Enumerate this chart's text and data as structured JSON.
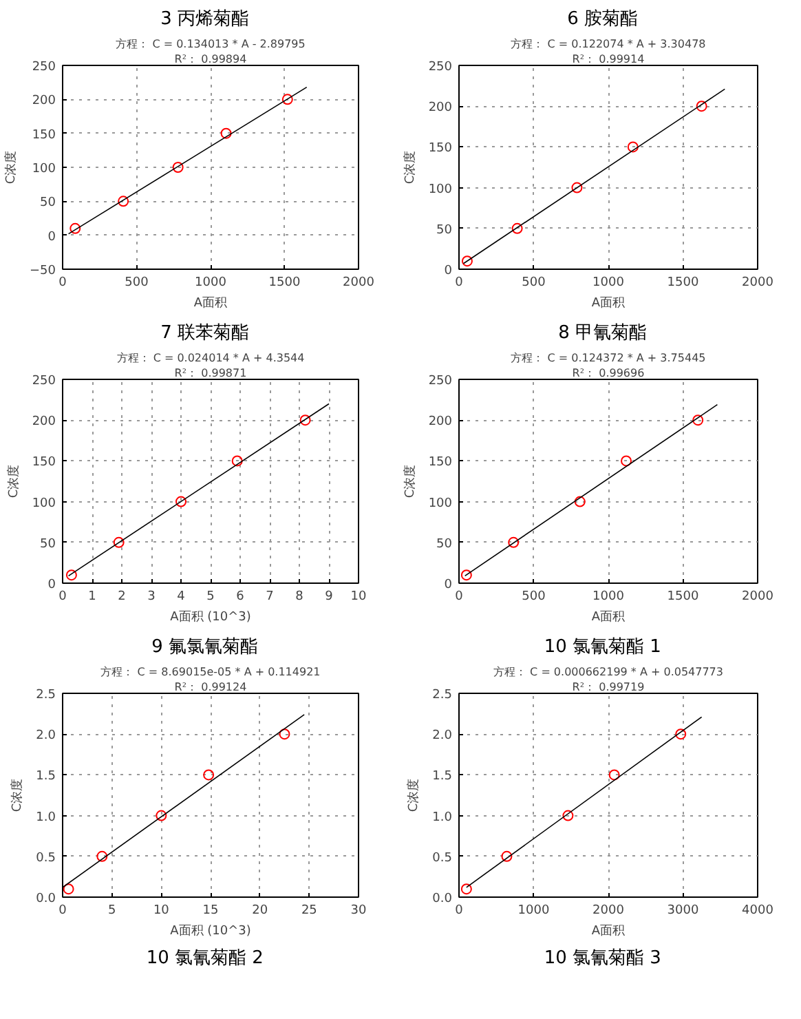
{
  "chart_data": [
    {
      "type": "scatter",
      "title": "3   丙烯菊酯",
      "xlabel": "A面积",
      "ylabel": "C浓度",
      "annotations": [
        "方程： C = 0.134013 * A - 2.89795",
        "R²： 0.99894"
      ],
      "xlim": [
        0,
        2000
      ],
      "ylim": [
        -50,
        250
      ],
      "xticks": [
        0,
        500,
        1000,
        1500,
        2000
      ],
      "yticks": [
        -50,
        0,
        50,
        100,
        150,
        200,
        250
      ],
      "grid": true,
      "series": [
        {
          "type": "scatter",
          "marker": "circle",
          "color": "#ff0000",
          "x": [
            85,
            410,
            780,
            1105,
            1520
          ],
          "values": [
            10,
            50,
            100,
            150,
            200
          ]
        },
        {
          "type": "line",
          "marker": "none",
          "color": "#000000",
          "x": [
            40,
            1650
          ],
          "values": [
            2,
            218
          ]
        }
      ]
    },
    {
      "type": "scatter",
      "title": "6   胺菊酯",
      "xlabel": "A面积",
      "ylabel": "C浓度",
      "annotations": [
        "方程： C = 0.122074 * A + 3.30478",
        "R²： 0.99914"
      ],
      "xlim": [
        0,
        2000
      ],
      "ylim": [
        0,
        250
      ],
      "xticks": [
        0,
        500,
        1000,
        1500,
        2000
      ],
      "yticks": [
        0,
        50,
        100,
        150,
        200,
        250
      ],
      "grid": true,
      "series": [
        {
          "type": "scatter",
          "marker": "circle",
          "color": "#ff0000",
          "x": [
            55,
            390,
            790,
            1165,
            1625
          ],
          "values": [
            10,
            50,
            100,
            150,
            200
          ]
        },
        {
          "type": "line",
          "marker": "none",
          "color": "#000000",
          "x": [
            30,
            1780
          ],
          "values": [
            7,
            221
          ]
        }
      ]
    },
    {
      "type": "scatter",
      "title": "7   联苯菊酯",
      "xlabel": "A面积 (10^3)",
      "ylabel": "C浓度",
      "annotations": [
        "方程： C = 0.024014 * A + 4.3544",
        "R²： 0.99871"
      ],
      "xlim": [
        0,
        10
      ],
      "ylim": [
        0,
        250
      ],
      "xticks": [
        0,
        1,
        2,
        3,
        4,
        5,
        6,
        7,
        8,
        9,
        10
      ],
      "yticks": [
        0,
        50,
        100,
        150,
        200,
        250
      ],
      "grid": true,
      "series": [
        {
          "type": "scatter",
          "marker": "circle",
          "color": "#ff0000",
          "x": [
            0.3,
            1.9,
            4.0,
            5.9,
            8.2
          ],
          "values": [
            10,
            50,
            100,
            150,
            200
          ]
        },
        {
          "type": "line",
          "marker": "none",
          "color": "#000000",
          "x": [
            0.2,
            9.0
          ],
          "values": [
            9,
            220
          ]
        }
      ]
    },
    {
      "type": "scatter",
      "title": "8   甲氰菊酯",
      "xlabel": "A面积",
      "ylabel": "C浓度",
      "annotations": [
        "方程： C = 0.124372 * A + 3.75445",
        "R²： 0.99696"
      ],
      "xlim": [
        0,
        2000
      ],
      "ylim": [
        0,
        250
      ],
      "xticks": [
        0,
        500,
        1000,
        1500,
        2000
      ],
      "yticks": [
        0,
        50,
        100,
        150,
        200,
        250
      ],
      "grid": true,
      "series": [
        {
          "type": "scatter",
          "marker": "circle",
          "color": "#ff0000",
          "x": [
            50,
            365,
            810,
            1120,
            1600
          ],
          "values": [
            10,
            50,
            100,
            150,
            200
          ]
        },
        {
          "type": "line",
          "marker": "none",
          "color": "#000000",
          "x": [
            40,
            1730
          ],
          "values": [
            9,
            219
          ]
        }
      ]
    },
    {
      "type": "scatter",
      "title": "9   氟氯氰菊酯",
      "xlabel": "A面积 (10^3)",
      "ylabel": "C浓度",
      "annotations": [
        "方程： C = 8.69015e-05 * A + 0.114921",
        "R²： 0.99124"
      ],
      "xlim": [
        0,
        30
      ],
      "ylim": [
        0,
        2.5
      ],
      "xticks": [
        0,
        5,
        10,
        15,
        20,
        25,
        30
      ],
      "yticks": [
        {
          "value": 0,
          "label": "0.0"
        },
        0.5,
        {
          "value": 1,
          "label": "1.0"
        },
        1.5,
        {
          "value": 2,
          "label": "2.0"
        },
        2.5
      ],
      "grid": true,
      "series": [
        {
          "type": "scatter",
          "marker": "circle",
          "color": "#ff0000",
          "x": [
            0.6,
            4.0,
            10.0,
            14.8,
            22.5
          ],
          "values": [
            0.1,
            0.5,
            1.0,
            1.5,
            2.0
          ]
        },
        {
          "type": "line",
          "marker": "none",
          "color": "#000000",
          "x": [
            0,
            24.5
          ],
          "values": [
            0.12,
            2.24
          ]
        }
      ]
    },
    {
      "type": "scatter",
      "title": "10   氯氰菊酯 1",
      "xlabel": "A面积",
      "ylabel": "C浓度",
      "annotations": [
        "方程： C = 0.000662199 * A + 0.0547773",
        "R²： 0.99719"
      ],
      "xlim": [
        0,
        4000
      ],
      "ylim": [
        0,
        2.5
      ],
      "xticks": [
        0,
        1000,
        2000,
        3000,
        4000
      ],
      "yticks": [
        {
          "value": 0,
          "label": "0.0"
        },
        0.5,
        {
          "value": 1,
          "label": "1.0"
        },
        1.5,
        {
          "value": 2,
          "label": "2.0"
        },
        2.5
      ],
      "grid": true,
      "series": [
        {
          "type": "scatter",
          "marker": "circle",
          "color": "#ff0000",
          "x": [
            100,
            640,
            1460,
            2080,
            2970
          ],
          "values": [
            0.1,
            0.5,
            1.0,
            1.5,
            2.0
          ]
        },
        {
          "type": "line",
          "marker": "none",
          "color": "#000000",
          "x": [
            100,
            3250
          ],
          "values": [
            0.12,
            2.21
          ]
        }
      ]
    },
    {
      "type": "other",
      "title": "10   氯氰菊酯 2"
    },
    {
      "type": "other",
      "title": "10   氯氰菊酯 3"
    }
  ]
}
